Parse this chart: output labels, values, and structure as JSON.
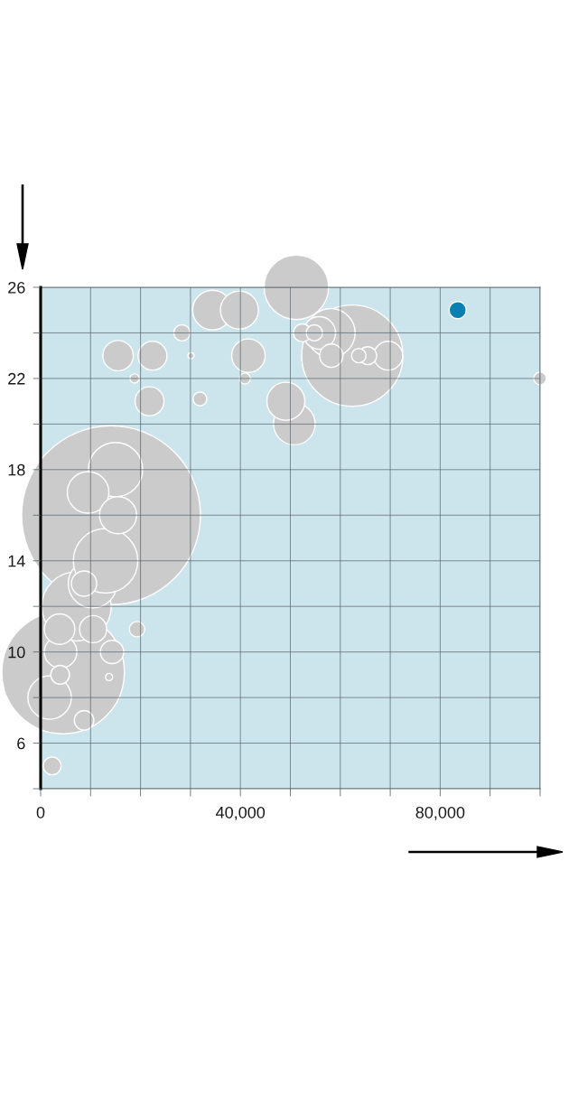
{
  "chart_data": {
    "type": "bubble",
    "x": [
      14100,
      4500,
      62400,
      7200,
      51200,
      15000,
      58100,
      10400,
      13000,
      1800,
      9500,
      50800,
      34400,
      39800,
      49100,
      15500,
      41600,
      55800,
      4000,
      3800,
      15500,
      22400,
      21800,
      69600,
      10500,
      8700,
      14300,
      58200,
      8700,
      3900,
      2300,
      52400,
      65500,
      83500,
      28300,
      54800,
      19300,
      63700,
      31900,
      100000,
      40900,
      18800,
      13700,
      30100
    ],
    "values": [
      16,
      9.1,
      23,
      12,
      26,
      18,
      24,
      13,
      14,
      8,
      17,
      20,
      25,
      25,
      21,
      16,
      23,
      24,
      10,
      11,
      23,
      23,
      21,
      23,
      11,
      13,
      10,
      23,
      7,
      9,
      5,
      24,
      23,
      25,
      24,
      24,
      11,
      23,
      21.1,
      22,
      22,
      22,
      8.9,
      23
    ],
    "sizes": [
      1,
      0.47,
      0.32,
      0.15,
      0.13,
      0.092,
      0.074,
      0.074,
      0.13,
      0.059,
      0.054,
      0.054,
      0.049,
      0.045,
      0.045,
      0.043,
      0.035,
      0.033,
      0.033,
      0.029,
      0.029,
      0.026,
      0.026,
      0.026,
      0.023,
      0.02,
      0.017,
      0.017,
      0.012,
      0.011,
      0.01,
      0.01,
      0.01,
      0.0092,
      0.0083,
      0.0083,
      0.0074,
      0.0065,
      0.006,
      0.005,
      0.0037,
      0.0026,
      0.0016,
      0.0012
    ],
    "colors": [
      "#cbcbcb",
      "#cbcbcb",
      "#cbcbcb",
      "#cbcbcb",
      "#cbcbcb",
      "#cbcbcb",
      "#cbcbcb",
      "#cbcbcb",
      "#cbcbcb",
      "#cbcbcb",
      "#cbcbcb",
      "#cbcbcb",
      "#cbcbcb",
      "#cbcbcb",
      "#cbcbcb",
      "#cbcbcb",
      "#cbcbcb",
      "#cbcbcb",
      "#cbcbcb",
      "#cbcbcb",
      "#cbcbcb",
      "#cbcbcb",
      "#cbcbcb",
      "#cbcbcb",
      "#cbcbcb",
      "#cbcbcb",
      "#cbcbcb",
      "#cbcbcb",
      "#cbcbcb",
      "#cbcbcb",
      "#cbcbcb",
      "#cbcbcb",
      "#cbcbcb",
      "#0a80b2",
      "#cbcbcb",
      "#cbcbcb",
      "#cbcbcb",
      "#cbcbcb",
      "#cbcbcb",
      "#cbcbcb",
      "#cbcbcb",
      "#cbcbcb",
      "#cbcbcb",
      "#cbcbcb"
    ],
    "xlim": [
      0,
      100000
    ],
    "xticks": [
      0,
      {
        "value": 10000,
        "label": null
      },
      {
        "value": 20000,
        "label": null
      },
      {
        "value": 30000,
        "label": null
      },
      {
        "value": 40000,
        "label": "40,000"
      },
      {
        "value": 50000,
        "label": null
      },
      {
        "value": 60000,
        "label": null
      },
      {
        "value": 70000,
        "label": null
      },
      {
        "value": 80000,
        "label": "80,000"
      },
      {
        "value": 90000,
        "label": null
      },
      {
        "value": 100000,
        "label": null
      }
    ],
    "ylim": [
      4,
      26
    ],
    "yticks": [
      {
        "value": 4,
        "label": null
      },
      6,
      {
        "value": 8,
        "label": null
      },
      10,
      {
        "value": 12,
        "label": null
      },
      14,
      {
        "value": 16,
        "label": null
      },
      18,
      {
        "value": 20,
        "label": null
      },
      22,
      {
        "value": 24,
        "label": null
      },
      26
    ],
    "grid": true
  }
}
